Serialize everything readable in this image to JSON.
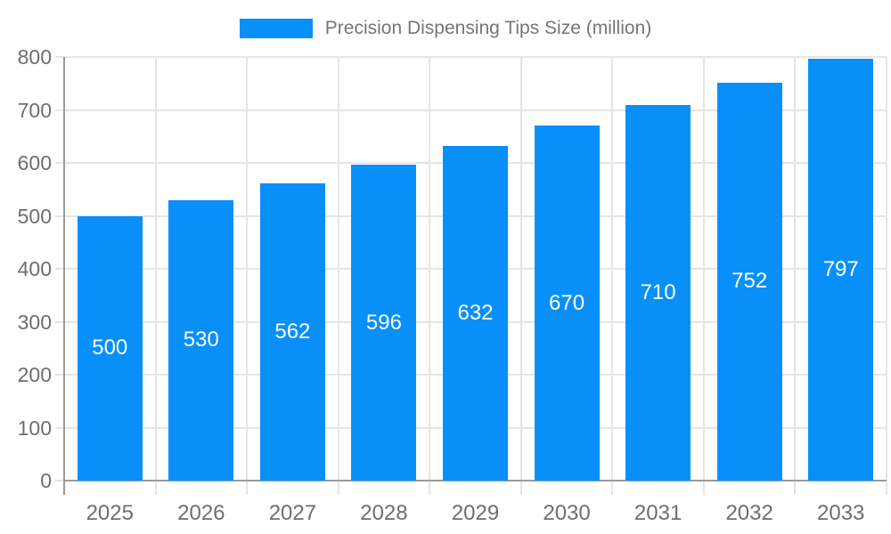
{
  "legend": {
    "label": "Precision Dispensing Tips Size (million)"
  },
  "colors": {
    "bar": "#0890f8",
    "grid": "#e5e5e5",
    "axis": "#9a9a9a",
    "tick_text": "#6e6e6e",
    "legend_text": "#757575",
    "value_text": "#ffffff"
  },
  "chart_data": {
    "type": "bar",
    "title": "Precision Dispensing Tips Size (million)",
    "categories": [
      "2025",
      "2026",
      "2027",
      "2028",
      "2029",
      "2030",
      "2031",
      "2032",
      "2033"
    ],
    "values": [
      500,
      530,
      562,
      596,
      632,
      670,
      710,
      752,
      797
    ],
    "xlabel": "",
    "ylabel": "",
    "ylim": [
      0,
      800
    ],
    "ytick_step": 100,
    "yticks": [
      0,
      100,
      200,
      300,
      400,
      500,
      600,
      700,
      800
    ],
    "grid": true,
    "legend_position": "top",
    "value_labels": "inside-center"
  }
}
